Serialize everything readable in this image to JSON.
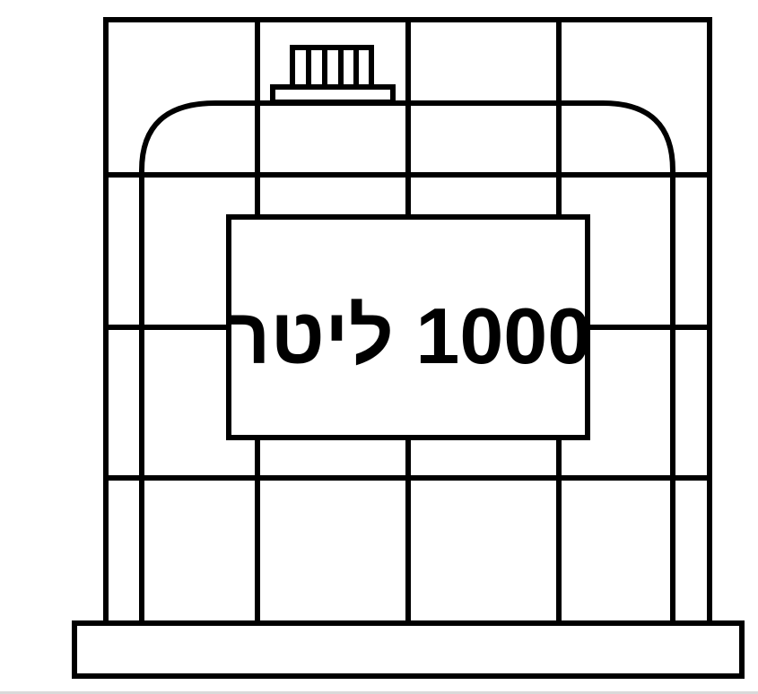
{
  "tank": {
    "label": "1000 ליטר"
  },
  "colors": {
    "stroke": "#000000",
    "background": "#ffffff"
  }
}
